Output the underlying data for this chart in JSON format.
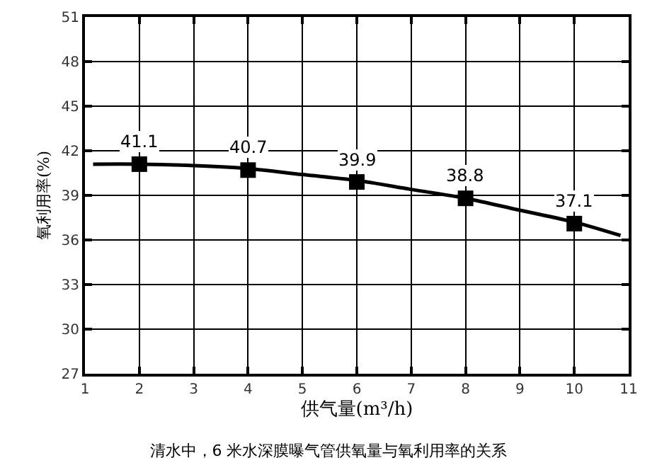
{
  "chart_data": {
    "type": "scatter",
    "title": "清水中，6 米水深膜曝气管供氧量与氧利用率的关系",
    "xlabel": "供气量(m³/h)",
    "ylabel": "氧利用率(%)",
    "xlim": [
      1,
      11
    ],
    "xticks": [
      1,
      2,
      3,
      4,
      5,
      6,
      7,
      8,
      9,
      10,
      11
    ],
    "ylim": [
      27,
      51
    ],
    "yticks": [
      27,
      30,
      33,
      36,
      39,
      42,
      45,
      48,
      51
    ],
    "grid": true,
    "marker": "square",
    "series": [
      {
        "type": "line",
        "marker": "none",
        "color": "#000000",
        "x": [
          1.15,
          2,
          3,
          4,
          5,
          6,
          7,
          8,
          9,
          10,
          10.85
        ],
        "values": [
          41.1,
          41.1,
          41.0,
          40.8,
          40.4,
          40.0,
          39.4,
          38.8,
          38.0,
          37.2,
          36.3
        ]
      },
      {
        "color": "#000000",
        "x": [
          2,
          4,
          6,
          8,
          10
        ],
        "values": [
          41.1,
          40.7,
          39.9,
          38.8,
          37.1
        ],
        "value_labels": [
          "41.1",
          "40.7",
          "39.9",
          "38.8",
          "37.1"
        ]
      }
    ]
  }
}
